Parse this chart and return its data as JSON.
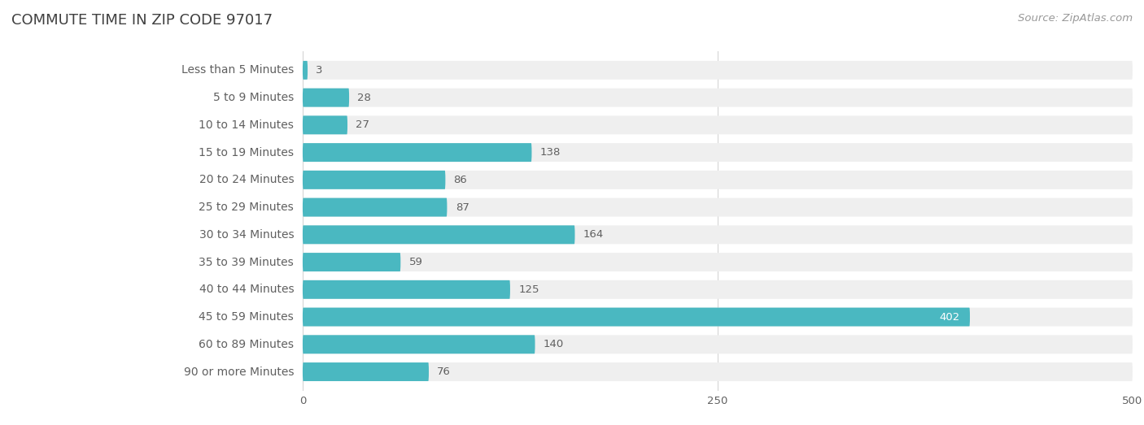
{
  "title": "Commute Time in Zip Code 97017",
  "title_upper": "COMMUTE TIME IN ZIP CODE 97017",
  "source": "Source: ZipAtlas.com",
  "categories": [
    "Less than 5 Minutes",
    "5 to 9 Minutes",
    "10 to 14 Minutes",
    "15 to 19 Minutes",
    "20 to 24 Minutes",
    "25 to 29 Minutes",
    "30 to 34 Minutes",
    "35 to 39 Minutes",
    "40 to 44 Minutes",
    "45 to 59 Minutes",
    "60 to 89 Minutes",
    "90 or more Minutes"
  ],
  "values": [
    3,
    28,
    27,
    138,
    86,
    87,
    164,
    59,
    125,
    402,
    140,
    76
  ],
  "bar_color": "#4ab8c1",
  "bar_bg_color": "#efefef",
  "text_color_dark": "#606060",
  "text_color_white": "#ffffff",
  "title_color": "#404040",
  "source_color": "#999999",
  "background_color": "#ffffff",
  "xlim": [
    0,
    500
  ],
  "xticks": [
    0,
    250,
    500
  ],
  "bar_height": 0.68,
  "bar_gap": 1.0,
  "label_fontsize": 10.0,
  "value_fontsize": 9.5,
  "title_fontsize": 13,
  "source_fontsize": 9.5
}
